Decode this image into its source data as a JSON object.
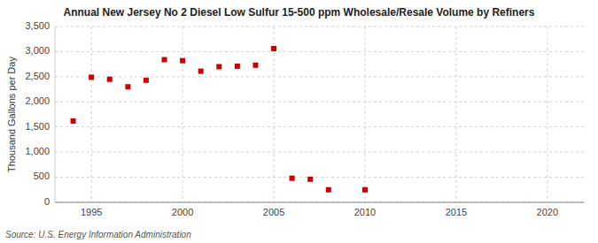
{
  "chart_data": {
    "type": "scatter",
    "title": "Annual New Jersey No 2 Diesel Low Sulfur 15-500 ppm Wholesale/Resale Volume by Refiners",
    "y_label": "Thousand Gallons per Day",
    "annotations": [
      "Source: U.S. Energy Information Administration"
    ],
    "x": [
      1994,
      1995,
      1996,
      1997,
      1998,
      1999,
      2000,
      2001,
      2002,
      2003,
      2004,
      2005,
      2006,
      2007,
      2008,
      2010
    ],
    "values": [
      1620,
      2490,
      2450,
      2300,
      2430,
      2840,
      2820,
      2610,
      2700,
      2710,
      2730,
      3060,
      480,
      460,
      250,
      250
    ],
    "color": "#cc0000",
    "marker": "square",
    "xlim": [
      1993,
      2022
    ],
    "ylim": [
      0,
      3500
    ],
    "xticks": [
      1995,
      2000,
      2005,
      2010,
      2015,
      2020
    ],
    "yticks": [
      0,
      500,
      {
        "value": 1000,
        "label": "1,000"
      },
      {
        "value": 1500,
        "label": "1,500"
      },
      {
        "value": 2000,
        "label": "2,000"
      },
      {
        "value": 2500,
        "label": "2,500"
      },
      {
        "value": 3000,
        "label": "3,000"
      },
      {
        "value": 3500,
        "label": "3,500"
      }
    ],
    "grid": true
  }
}
